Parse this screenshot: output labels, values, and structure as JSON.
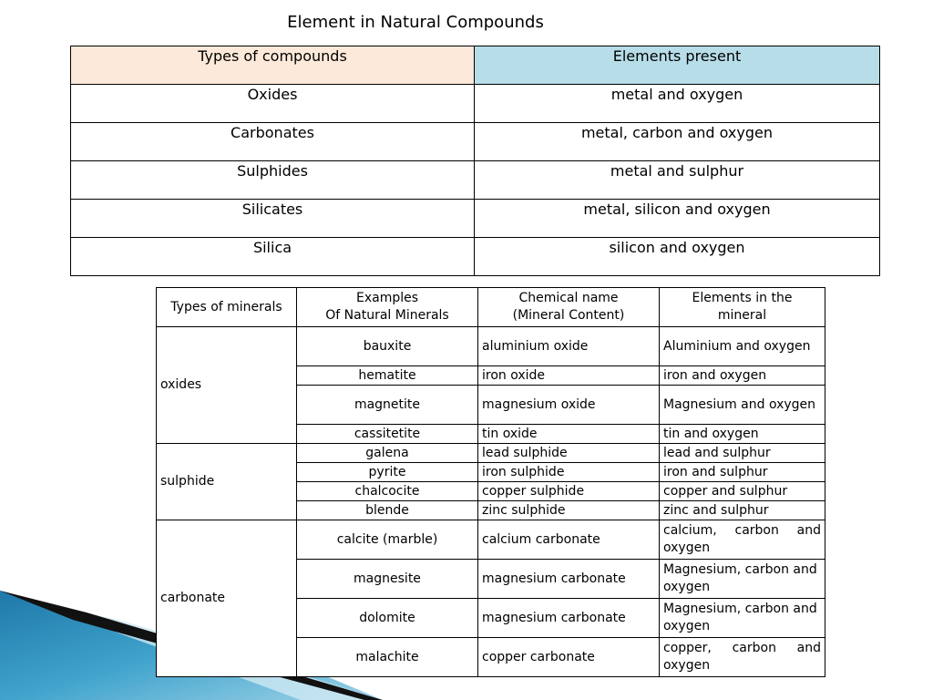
{
  "title": "Element in Natural Compounds",
  "colors": {
    "header_left": "#fde9d9",
    "header_right": "#b7dde8",
    "decor_blue": "#3a9bc4"
  },
  "table1": {
    "headers": [
      "Types of compounds",
      "Elements present"
    ],
    "rows": [
      [
        "Oxides",
        "metal and oxygen"
      ],
      [
        "Carbonates",
        "metal, carbon and oxygen"
      ],
      [
        "Sulphides",
        "metal and sulphur"
      ],
      [
        "Silicates",
        "metal, silicon and oxygen"
      ],
      [
        "Silica",
        "silicon and oxygen"
      ]
    ]
  },
  "table2": {
    "headers": [
      "Types of minerals",
      "Examples\nOf Natural Minerals",
      "Chemical name\n(Mineral Content)",
      "Elements in the\nmineral"
    ],
    "groups": [
      {
        "type": "oxides",
        "rows": [
          [
            "bauxite",
            "aluminium oxide",
            "Aluminium and oxygen"
          ],
          [
            "hematite",
            "iron oxide",
            "iron and oxygen"
          ],
          [
            "magnetite",
            "magnesium oxide",
            "Magnesium and oxygen"
          ],
          [
            "cassitetite",
            "tin oxide",
            "tin and oxygen"
          ]
        ]
      },
      {
        "type": "sulphide",
        "rows": [
          [
            "galena",
            "lead sulphide",
            "lead and sulphur"
          ],
          [
            "pyrite",
            "iron sulphide",
            "iron and sulphur"
          ],
          [
            "chalcocite",
            "copper sulphide",
            "copper and sulphur"
          ],
          [
            "blende",
            "zinc sulphide",
            "zinc and sulphur"
          ]
        ]
      },
      {
        "type": "carbonate",
        "rows": [
          [
            "calcite (marble)",
            "calcium carbonate",
            "calcium, carbon and oxygen"
          ],
          [
            "magnesite",
            "magnesium carbonate",
            "Magnesium, carbon and oxygen"
          ],
          [
            "dolomite",
            "magnesium carbonate",
            "Magnesium, carbon and oxygen"
          ],
          [
            "malachite",
            "copper carbonate",
            "copper, carbon and oxygen"
          ]
        ]
      }
    ]
  }
}
